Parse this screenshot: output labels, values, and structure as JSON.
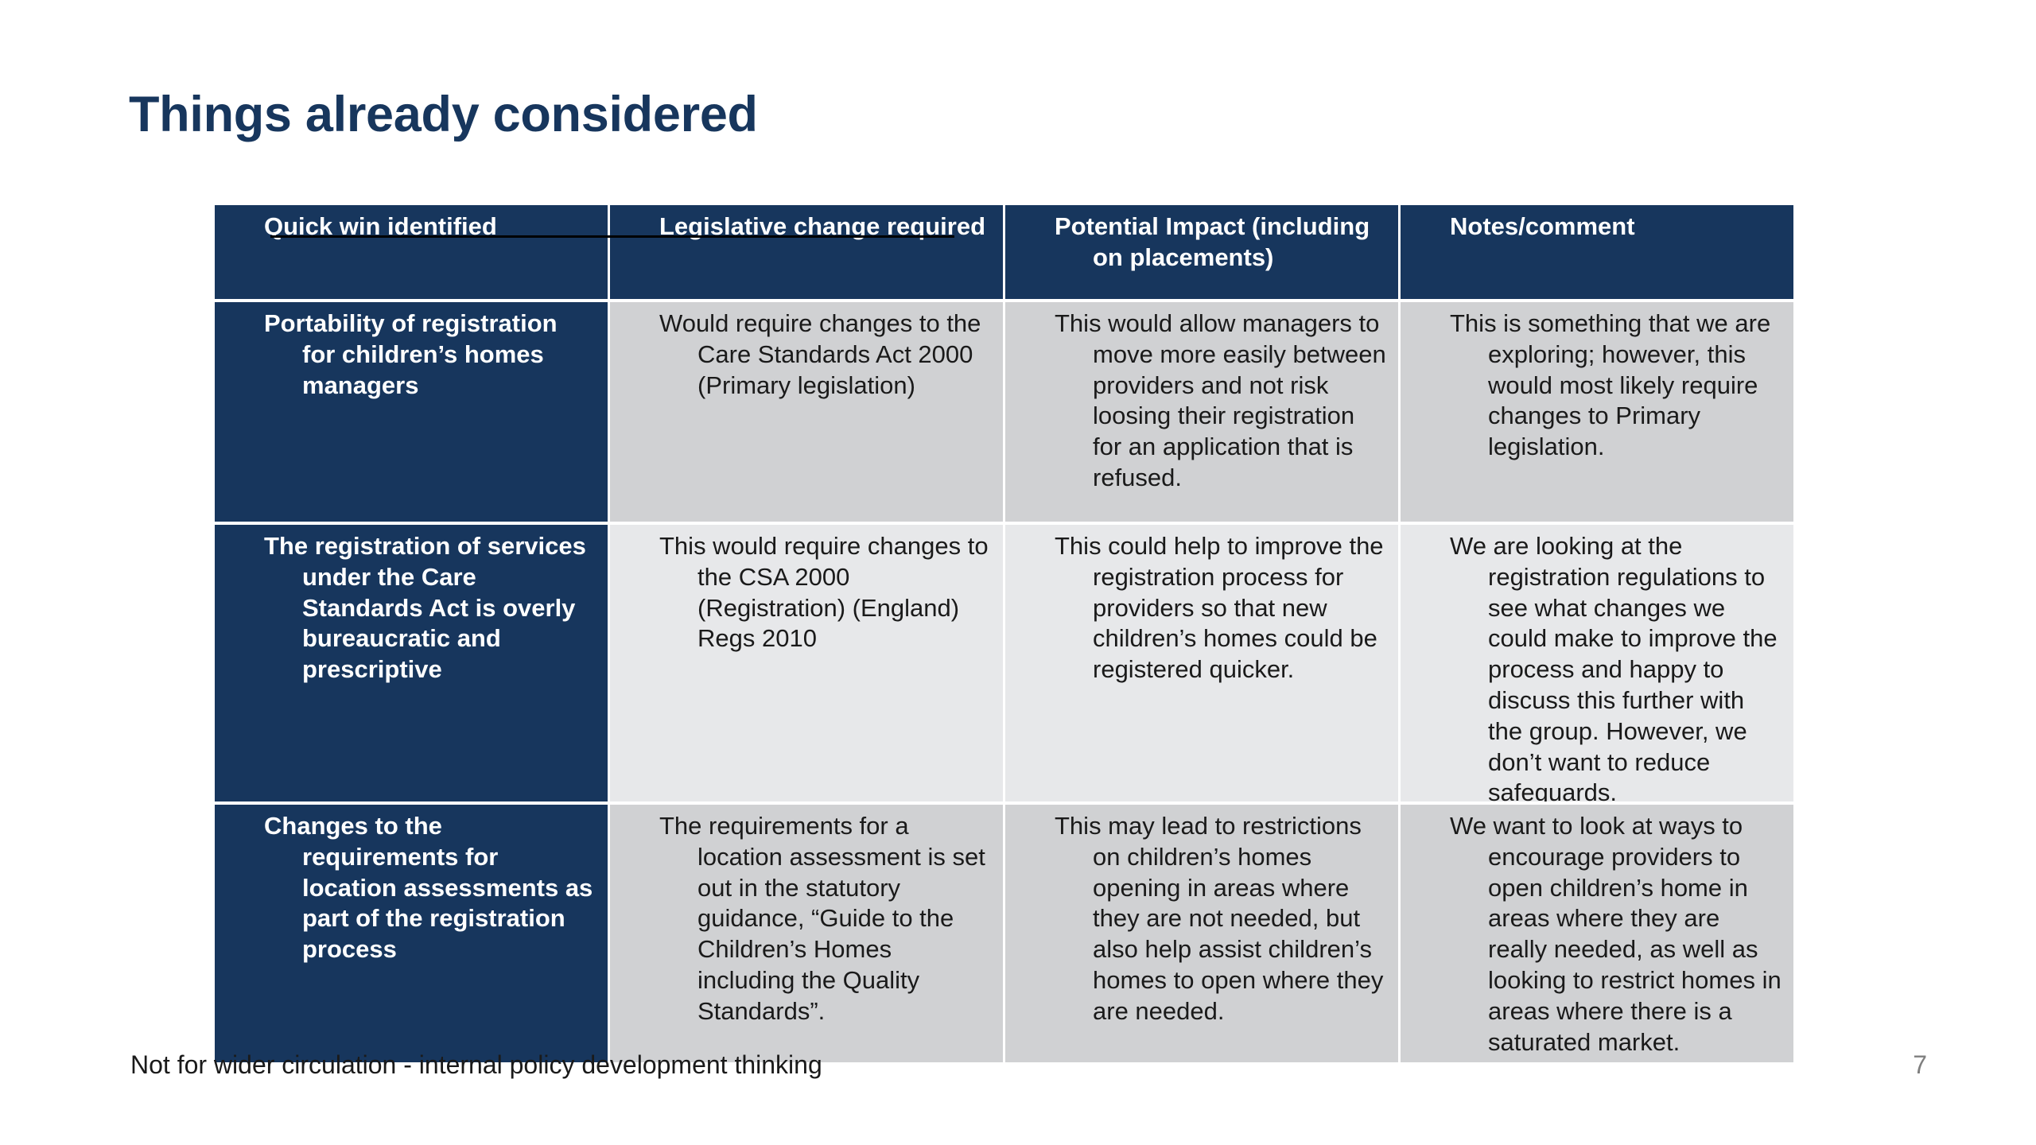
{
  "slide": {
    "title": "Things already considered",
    "footer_note": "Not for wider circulation - internal policy development thinking",
    "page_number": "7"
  },
  "table": {
    "headers": [
      "Quick win identified",
      "Legislative change required",
      "Potential Impact (including on placements)",
      "Notes/comment"
    ],
    "rows": [
      {
        "quick_win": "Portability of registration for children’s homes managers",
        "legislative_change": "Would require changes to the Care Standards Act 2000 (Primary legislation)",
        "impact": "This would allow managers to move more easily between providers and not risk loosing their registration for an application that is refused.",
        "notes": "This is something that we are exploring; however, this would most likely require changes to Primary legislation."
      },
      {
        "quick_win": "The registration of services under the Care Standards Act is overly bureaucratic and prescriptive",
        "legislative_change": "This would require changes to the CSA 2000 (Registration) (England) Regs 2010",
        "impact": "This could help to improve the registration process for providers so that new children’s homes could be registered quicker.",
        "notes": "We are looking at the registration regulations to see what changes we could make to improve the process and happy to discuss this further with the group. However, we don’t want to reduce safeguards."
      },
      {
        "quick_win": "Changes to the requirements for location assessments as part of the registration process",
        "legislative_change": "The requirements for a location assessment is set out in the statutory guidance, “Guide to the Children’s Homes including the Quality Standards”.",
        "impact": "This may lead to restrictions on children’s homes opening in areas where they are not needed, but also help assist children’s homes to open where they are needed.",
        "notes": "We want to look at ways to encourage providers to open children’s home in areas where they are really needed, as well as looking to restrict homes in areas where there is a saturated market."
      }
    ]
  },
  "colors": {
    "navy": "#17365d",
    "row_dark": "#d0d1d3",
    "row_light": "#e7e8ea"
  }
}
